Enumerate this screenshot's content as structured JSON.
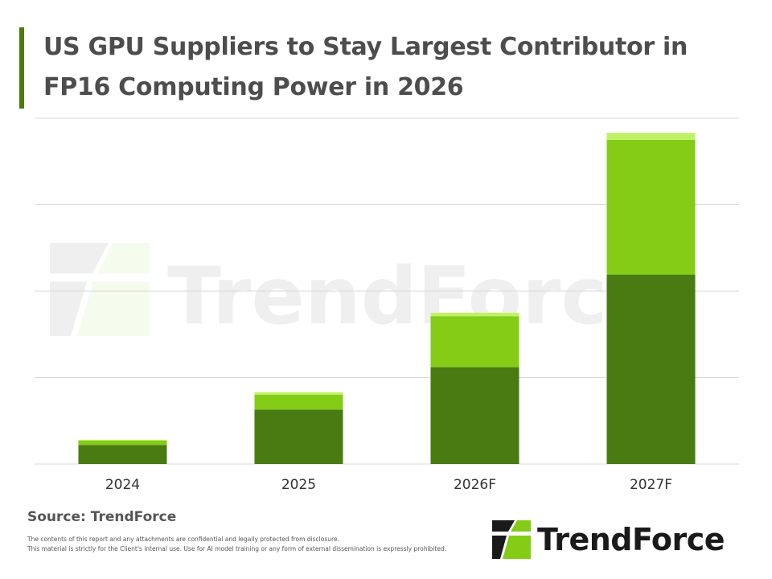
{
  "header": {
    "title": "US GPU Suppliers to Stay Largest Contributor in FP16 Computing Power in 2026"
  },
  "footer": {
    "source": "Source: TrendForce",
    "disclaimer_line1": "The contents of this report and any attachments are confidential and legally protected from disclosure.",
    "disclaimer_line2": "This material is strictly for the Client's internal use. Use for AI model training or any form of external dissemination is expressly prohibited.",
    "logo_text": "TrendForce",
    "watermark_text": "TrendForce"
  },
  "colors": {
    "accent": "#4a7a12",
    "series_dark": "#4a7a12",
    "series_mid": "#84cc16",
    "series_light": "#bef264",
    "grid": "#d9d9d9",
    "text": "#4d4d4d"
  },
  "chart_data": {
    "type": "bar",
    "stacked": true,
    "categories": [
      "2024",
      "2025",
      "2026F",
      "2027F"
    ],
    "series": [
      {
        "values": [
          2.2,
          6.3,
          11.2,
          21.9
        ]
      },
      {
        "values": [
          0.5,
          1.7,
          5.9,
          15.6
        ]
      },
      {
        "values": [
          0.1,
          0.3,
          0.4,
          0.8
        ]
      }
    ],
    "ylim": [
      0,
      40
    ],
    "grid": true,
    "legend": "none"
  }
}
